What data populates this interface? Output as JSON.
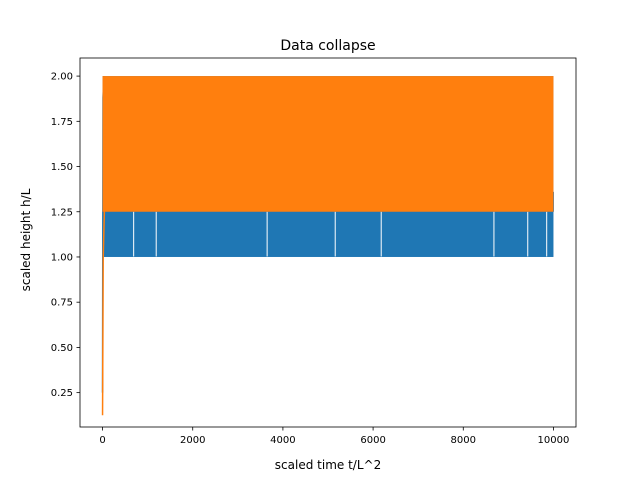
{
  "colors": {
    "series_blue": "#1f77b4",
    "series_orange": "#ff7f0e",
    "axes": "#000000",
    "background": "#ffffff"
  },
  "chart_data": {
    "type": "line",
    "title": "Data collapse",
    "xlabel": "scaled time t/L^2",
    "ylabel": "scaled height h/L",
    "xlim": [
      -500,
      10500
    ],
    "ylim": [
      0.06,
      2.1
    ],
    "grid": false,
    "x_ticks": [
      0,
      2000,
      4000,
      6000,
      8000,
      10000
    ],
    "x_tick_labels": [
      "0",
      "2000",
      "4000",
      "6000",
      "8000",
      "10000"
    ],
    "y_ticks": [
      0.25,
      0.5,
      0.75,
      1.0,
      1.25,
      1.5,
      1.75,
      2.0
    ],
    "y_tick_labels": [
      "0.25",
      "0.50",
      "0.75",
      "1.00",
      "1.25",
      "1.50",
      "1.75",
      "2.00"
    ],
    "series": [
      {
        "color": "#1f77b4",
        "x_range": [
          0,
          10000
        ],
        "band_y": [
          1.0,
          2.0
        ],
        "initial_rise": [
          {
            "x": 0,
            "y": 0.25
          },
          {
            "x": 10,
            "y": 1.88
          },
          {
            "x": 30,
            "y": 2.0
          }
        ],
        "dense_low_y": 1.0,
        "dense_high_y": 1.25,
        "notch_y": 1.36,
        "notch_x": [
          2100,
          2750,
          4200,
          4400,
          4800,
          4900,
          5000,
          5100,
          5350,
          6400,
          6950,
          7100,
          7150,
          7350,
          7550,
          10000
        ],
        "gaps_x": [
          690,
          1190,
          3650,
          5160,
          6180,
          8680,
          9430,
          9850
        ]
      },
      {
        "color": "#ff7f0e",
        "x_range": [
          0,
          10000
        ],
        "band_y": [
          1.25,
          2.0
        ],
        "initial_rise": [
          {
            "x": 0,
            "y": 0.125
          },
          {
            "x": 15,
            "y": 1.0
          },
          {
            "x": 40,
            "y": 1.25
          },
          {
            "x": 60,
            "y": 2.0
          }
        ]
      }
    ]
  }
}
